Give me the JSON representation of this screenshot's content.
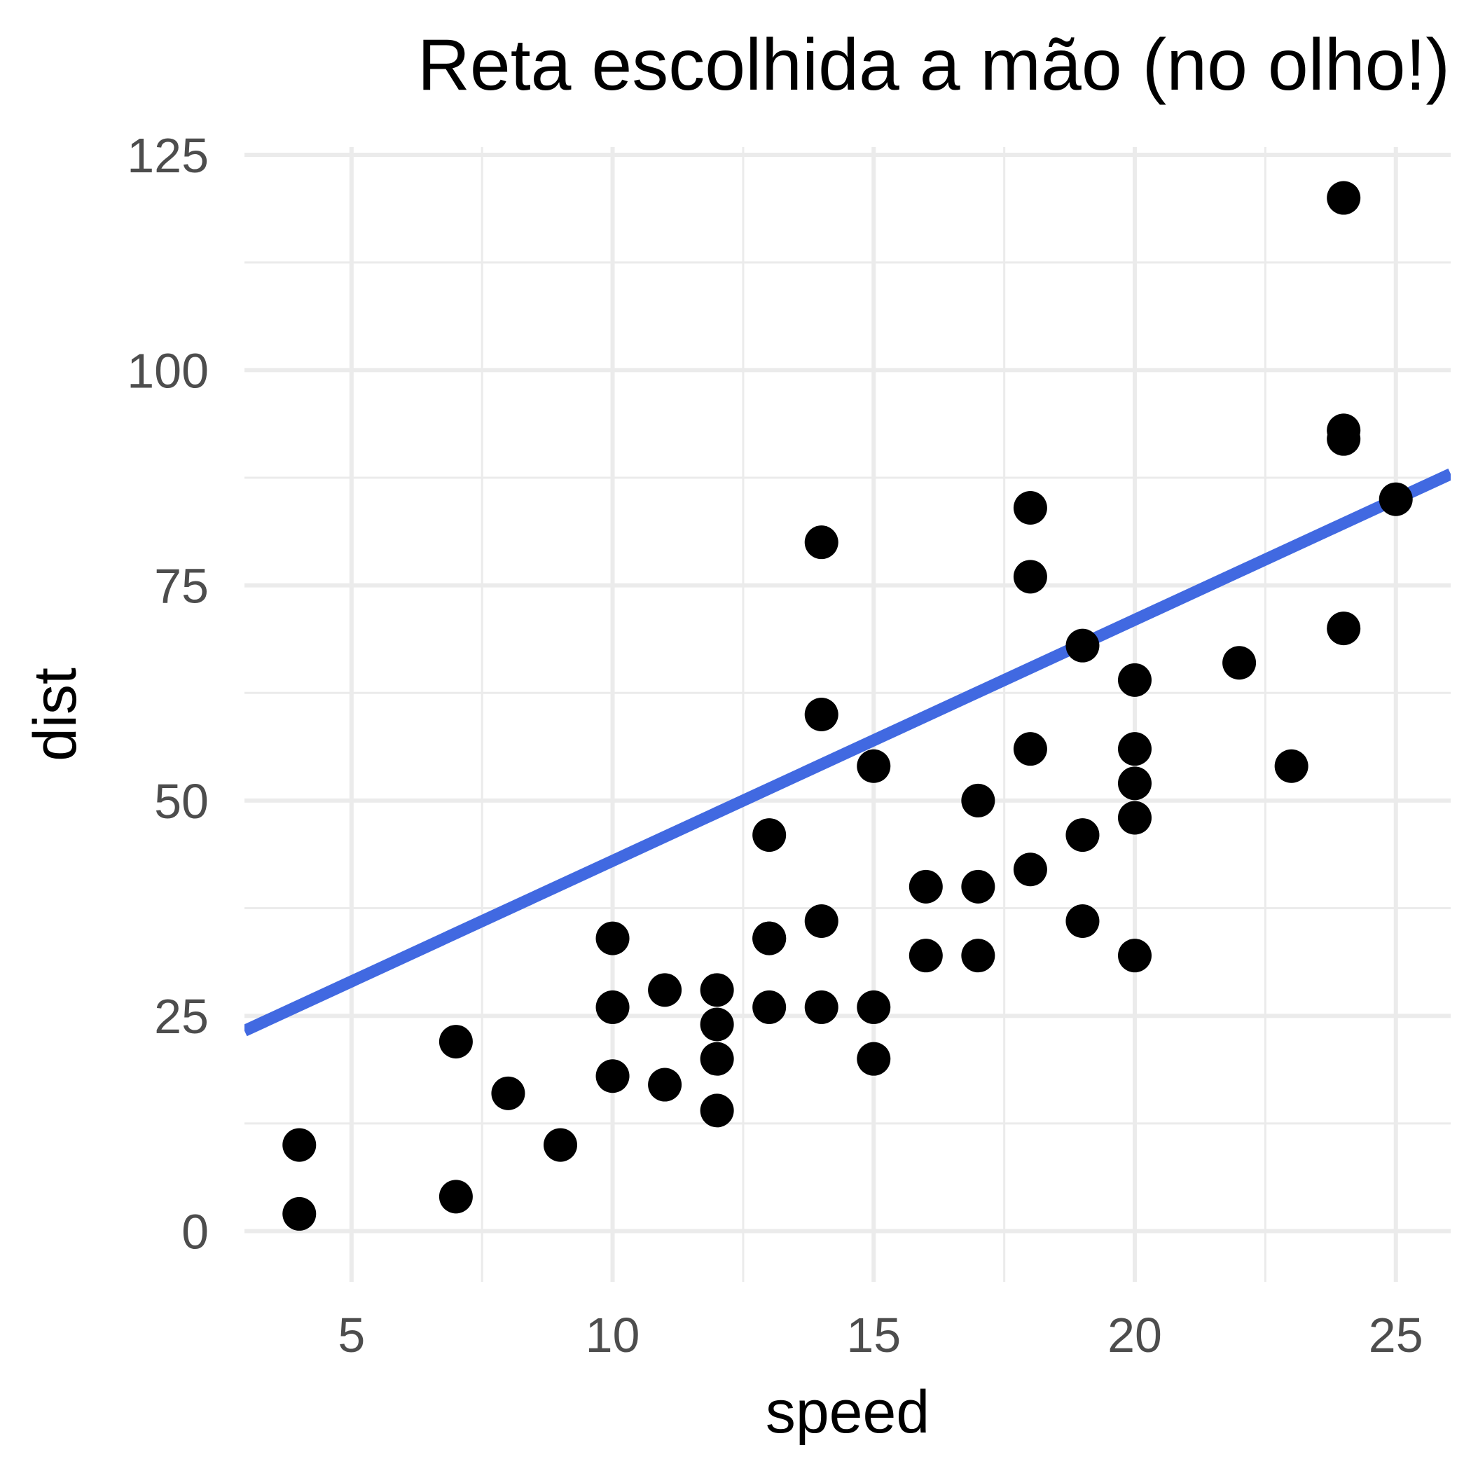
{
  "chart_data": {
    "type": "scatter",
    "title": "Reta escolhida a mão (no olho!)",
    "xlabel": "speed",
    "ylabel": "dist",
    "xlim": [
      2.95,
      26.05
    ],
    "ylim": [
      -5.9,
      125.9
    ],
    "x_ticks": [
      5,
      10,
      15,
      20,
      25
    ],
    "y_ticks": [
      0,
      25,
      50,
      75,
      100,
      125
    ],
    "x_tick_labels": [
      "5",
      "10",
      "15",
      "20",
      "25"
    ],
    "y_tick_labels": [
      "0",
      "25",
      "50",
      "75",
      "100",
      "125"
    ],
    "grid": true,
    "series": [
      {
        "points": [
          [
            4,
            2
          ],
          [
            4,
            10
          ],
          [
            7,
            4
          ],
          [
            7,
            22
          ],
          [
            8,
            16
          ],
          [
            9,
            10
          ],
          [
            10,
            18
          ],
          [
            10,
            26
          ],
          [
            10,
            34
          ],
          [
            11,
            17
          ],
          [
            11,
            28
          ],
          [
            12,
            14
          ],
          [
            12,
            20
          ],
          [
            12,
            24
          ],
          [
            12,
            28
          ],
          [
            13,
            26
          ],
          [
            13,
            34
          ],
          [
            13,
            34
          ],
          [
            13,
            46
          ],
          [
            14,
            26
          ],
          [
            14,
            36
          ],
          [
            14,
            60
          ],
          [
            14,
            80
          ],
          [
            15,
            20
          ],
          [
            15,
            26
          ],
          [
            15,
            54
          ],
          [
            16,
            32
          ],
          [
            16,
            40
          ],
          [
            17,
            32
          ],
          [
            17,
            40
          ],
          [
            17,
            50
          ],
          [
            18,
            42
          ],
          [
            18,
            56
          ],
          [
            18,
            76
          ],
          [
            18,
            84
          ],
          [
            19,
            36
          ],
          [
            19,
            46
          ],
          [
            19,
            68
          ],
          [
            20,
            32
          ],
          [
            20,
            48
          ],
          [
            20,
            52
          ],
          [
            20,
            56
          ],
          [
            20,
            64
          ],
          [
            22,
            66
          ],
          [
            23,
            54
          ],
          [
            24,
            70
          ],
          [
            24,
            92
          ],
          [
            24,
            93
          ],
          [
            24,
            120
          ],
          [
            25,
            85
          ]
        ],
        "color": "#000000"
      }
    ],
    "line": {
      "intercept": 15,
      "slope": 2.8,
      "color": "#4169E1"
    }
  }
}
